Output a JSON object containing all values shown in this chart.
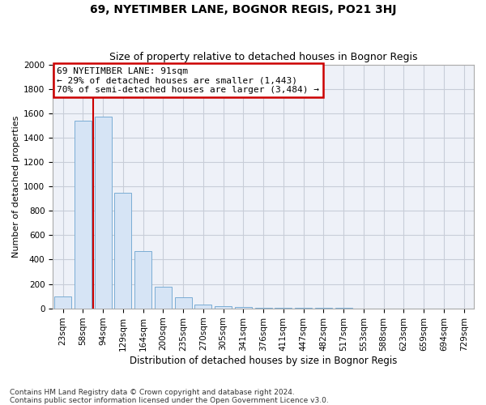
{
  "title": "69, NYETIMBER LANE, BOGNOR REGIS, PO21 3HJ",
  "subtitle": "Size of property relative to detached houses in Bognor Regis",
  "xlabel": "Distribution of detached houses by size in Bognor Regis",
  "ylabel": "Number of detached properties",
  "categories": [
    "23sqm",
    "58sqm",
    "94sqm",
    "129sqm",
    "164sqm",
    "200sqm",
    "235sqm",
    "270sqm",
    "305sqm",
    "341sqm",
    "376sqm",
    "411sqm",
    "447sqm",
    "482sqm",
    "517sqm",
    "553sqm",
    "588sqm",
    "623sqm",
    "659sqm",
    "694sqm",
    "729sqm"
  ],
  "values": [
    100,
    1540,
    1570,
    950,
    470,
    180,
    90,
    30,
    20,
    10,
    7,
    5,
    3,
    2,
    2,
    1,
    1,
    1,
    1,
    0,
    0
  ],
  "bar_color": "#d6e4f5",
  "bar_edge_color": "#7aadd4",
  "red_line_index": 2,
  "annotation_text": "69 NYETIMBER LANE: 91sqm\n← 29% of detached houses are smaller (1,443)\n70% of semi-detached houses are larger (3,484) →",
  "annotation_box_facecolor": "#ffffff",
  "annotation_box_edgecolor": "#cc0000",
  "footer_line1": "Contains HM Land Registry data © Crown copyright and database right 2024.",
  "footer_line2": "Contains public sector information licensed under the Open Government Licence v3.0.",
  "fig_background": "#ffffff",
  "plot_background": "#eef1f8",
  "ylim": [
    0,
    2000
  ],
  "yticks": [
    0,
    200,
    400,
    600,
    800,
    1000,
    1200,
    1400,
    1600,
    1800,
    2000
  ],
  "grid_color": "#c8cdd8",
  "title_fontsize": 10,
  "subtitle_fontsize": 9,
  "xlabel_fontsize": 8.5,
  "ylabel_fontsize": 8,
  "tick_fontsize": 7.5,
  "annotation_fontsize": 8,
  "footer_fontsize": 6.5
}
